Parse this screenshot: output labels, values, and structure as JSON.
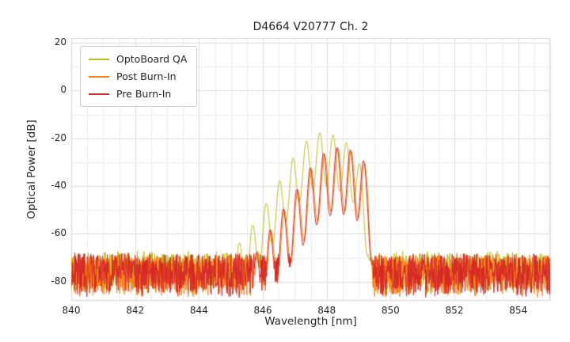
{
  "chart_data": {
    "type": "line",
    "title": "D4664 V20777 Ch. 2",
    "xlabel": "Wavelength [nm]",
    "ylabel": "Optical Power [dB]",
    "xlim": [
      840,
      855
    ],
    "ylim": [
      -88,
      22
    ],
    "xticks": [
      840,
      842,
      844,
      846,
      848,
      850,
      852,
      854
    ],
    "yticks": [
      20,
      0,
      -20,
      -40,
      -60,
      -80
    ],
    "x_minor_step": 0.5,
    "y_minor_step": 10,
    "grid": true,
    "legend_position": "upper left",
    "grid_major_color": "#dcdcdc",
    "grid_minor_color": "#ededed",
    "frame_color": "#d4d4d4",
    "series": [
      {
        "name": "OptoBoard QA",
        "color": "#bcbd22",
        "noise": {
          "floor": -70.0,
          "jitter": 3,
          "spike_depth": 16
        },
        "signal_range": [
          844.6,
          849.45
        ],
        "mode_spacing": 0.42,
        "mode_phase": 847.78,
        "mode_depth": 22,
        "peak_wavelength": 847.8,
        "peak_power": -17.5,
        "envelope": [
          [
            844.6,
            -70
          ],
          [
            845.0,
            -67
          ],
          [
            845.4,
            -62
          ],
          [
            845.8,
            -54
          ],
          [
            846.2,
            -45
          ],
          [
            846.6,
            -36
          ],
          [
            847.0,
            -27
          ],
          [
            847.4,
            -20.5
          ],
          [
            847.8,
            -17.5
          ],
          [
            848.2,
            -18.5
          ],
          [
            848.6,
            -21.5
          ],
          [
            848.9,
            -26
          ],
          [
            849.1,
            -33
          ],
          [
            849.3,
            -50
          ],
          [
            849.45,
            -78
          ]
        ]
      },
      {
        "name": "Post Burn-In",
        "color": "#ff7f0e",
        "noise": {
          "floor": -71.2,
          "jitter": 3,
          "spike_depth": 16
        },
        "signal_range": [
          845.7,
          849.5
        ],
        "mode_spacing": 0.42,
        "mode_phase": 848.35,
        "mode_depth": 26,
        "peak_wavelength": 848.4,
        "peak_power": -24,
        "envelope": [
          [
            845.7,
            -70
          ],
          [
            846.1,
            -62
          ],
          [
            846.5,
            -53
          ],
          [
            846.9,
            -46
          ],
          [
            847.3,
            -37
          ],
          [
            847.7,
            -29
          ],
          [
            848.1,
            -25
          ],
          [
            848.4,
            -24
          ],
          [
            848.8,
            -25.5
          ],
          [
            849.1,
            -28.5
          ],
          [
            849.3,
            -33
          ],
          [
            849.42,
            -48
          ],
          [
            849.5,
            -78
          ]
        ]
      },
      {
        "name": "Pre Burn-In",
        "color": "#d62728",
        "noise": {
          "floor": -70.8,
          "jitter": 3,
          "spike_depth": 16
        },
        "signal_range": [
          845.7,
          849.5
        ],
        "mode_spacing": 0.42,
        "mode_phase": 848.32,
        "mode_depth": 28,
        "peak_wavelength": 848.3,
        "peak_power": -23.5,
        "envelope": [
          [
            845.7,
            -70
          ],
          [
            846.1,
            -61
          ],
          [
            846.5,
            -52
          ],
          [
            846.9,
            -45
          ],
          [
            847.3,
            -36
          ],
          [
            847.7,
            -28
          ],
          [
            848.1,
            -24.5
          ],
          [
            848.4,
            -23.5
          ],
          [
            848.8,
            -25
          ],
          [
            849.1,
            -28
          ],
          [
            849.3,
            -32.5
          ],
          [
            849.42,
            -47
          ],
          [
            849.5,
            -78
          ]
        ]
      }
    ]
  }
}
